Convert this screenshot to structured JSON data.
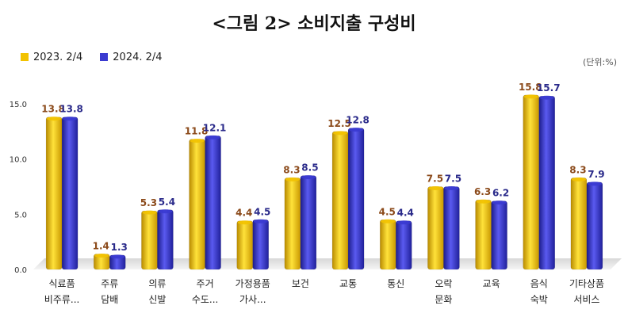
{
  "title": "<그림 2> 소비지출 구성비",
  "unit": "(단위:%)",
  "colors": {
    "series_2023": "#f2c200",
    "series_2024": "#3a3ad0",
    "label_2023": "#8b4a1a",
    "label_2024": "#2a2a8a"
  },
  "chart_data": {
    "type": "bar",
    "categories": [
      [
        "식료품",
        "비주류..."
      ],
      [
        "주류",
        "담배"
      ],
      [
        "의류",
        "신발"
      ],
      [
        "주거",
        "수도..."
      ],
      [
        "가정용품",
        "가사..."
      ],
      [
        "보건"
      ],
      [
        "교통"
      ],
      [
        "통신"
      ],
      [
        "오락",
        "문화"
      ],
      [
        "교육"
      ],
      [
        "음식",
        "숙박"
      ],
      [
        "기타상품",
        "서비스"
      ]
    ],
    "series": [
      {
        "name": "2023. 2/4",
        "values": [
          13.8,
          1.4,
          5.3,
          11.8,
          4.4,
          8.3,
          12.5,
          4.5,
          7.5,
          6.3,
          15.8,
          8.3
        ]
      },
      {
        "name": "2024. 2/4",
        "values": [
          13.8,
          1.3,
          5.4,
          12.1,
          4.5,
          8.5,
          12.8,
          4.4,
          7.5,
          6.2,
          15.7,
          7.9
        ]
      }
    ],
    "yticks": [
      "0.0",
      "5.0",
      "10.0",
      "15.0"
    ],
    "ylim": [
      0,
      17
    ],
    "legend": "top-left",
    "grid": false
  }
}
